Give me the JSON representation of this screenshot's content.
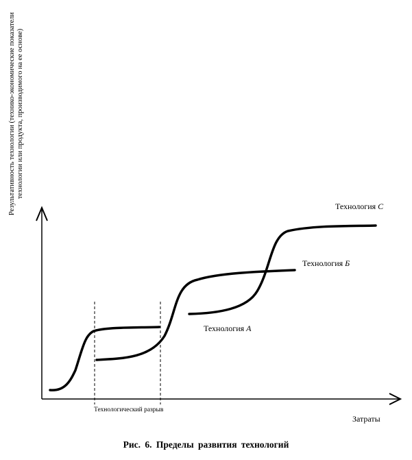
{
  "y_axis_label": "Результативность технологии (технико-экономические показатели технологии или продукта, производимого на ее основе)",
  "x_axis_label": "Затраты",
  "gap_label": "Технологический разрыв",
  "curves": [
    {
      "name_prefix": "Технология",
      "letter": "А"
    },
    {
      "name_prefix": "Технология",
      "letter": "Б"
    },
    {
      "name_prefix": "Технология",
      "letter": "С"
    }
  ],
  "caption": "Рис. 6.   Пределы  развития  технологий"
}
